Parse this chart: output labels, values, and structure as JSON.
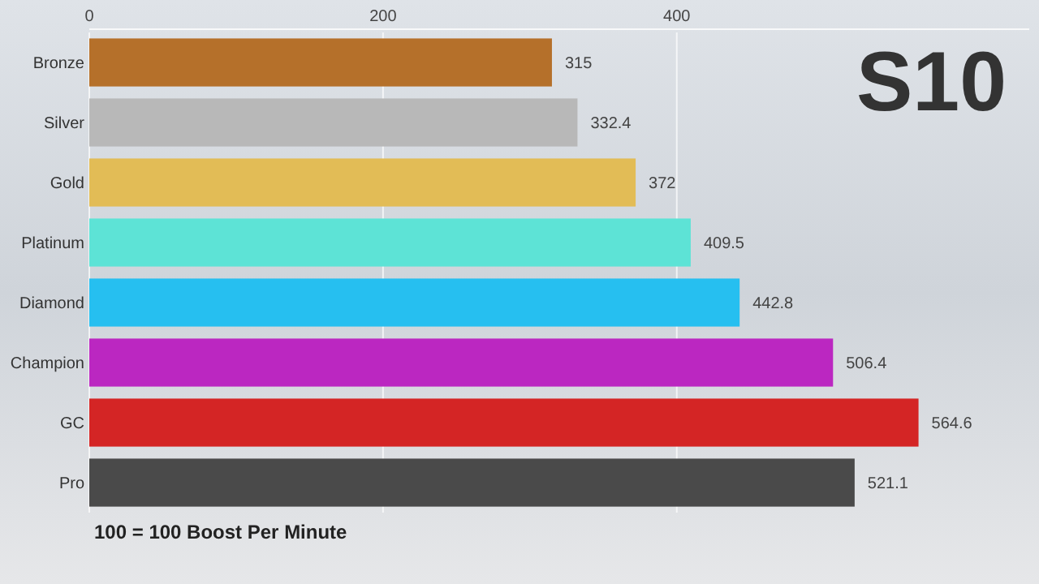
{
  "chart_data": {
    "type": "bar",
    "orientation": "horizontal",
    "title": "S10",
    "categories": [
      "Bronze",
      "Silver",
      "Gold",
      "Platinum",
      "Diamond",
      "Champion",
      "GC",
      "Pro"
    ],
    "values": [
      315,
      332.4,
      372,
      409.5,
      442.8,
      506.4,
      564.6,
      521.1
    ],
    "colors": [
      "#b5702a",
      "#b8b8b8",
      "#e2bc56",
      "#5de3d6",
      "#26bff0",
      "#bb27c1",
      "#d42525",
      "#4a4a4a"
    ],
    "xlim": [
      0,
      640
    ],
    "xticks": [
      0,
      200,
      400
    ],
    "grid": "x",
    "data_labels": true,
    "annotations": [
      "100 = 100 Boost Per Minute"
    ]
  }
}
